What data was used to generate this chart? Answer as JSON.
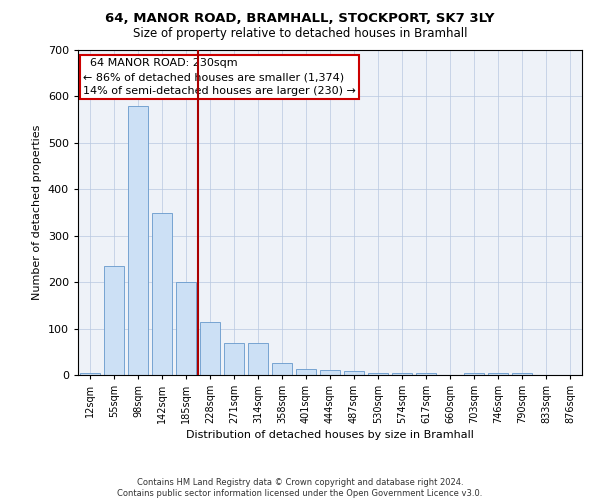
{
  "title_line1": "64, MANOR ROAD, BRAMHALL, STOCKPORT, SK7 3LY",
  "title_line2": "Size of property relative to detached houses in Bramhall",
  "xlabel": "Distribution of detached houses by size in Bramhall",
  "ylabel": "Number of detached properties",
  "annotation_line1": "  64 MANOR ROAD: 230sqm  ",
  "annotation_line2": "← 86% of detached houses are smaller (1,374)",
  "annotation_line3": "14% of semi-detached houses are larger (230) →",
  "bar_categories": [
    "12sqm",
    "55sqm",
    "98sqm",
    "142sqm",
    "185sqm",
    "228sqm",
    "271sqm",
    "314sqm",
    "358sqm",
    "401sqm",
    "444sqm",
    "487sqm",
    "530sqm",
    "574sqm",
    "617sqm",
    "660sqm",
    "703sqm",
    "746sqm",
    "790sqm",
    "833sqm",
    "876sqm"
  ],
  "bar_values": [
    5,
    235,
    580,
    350,
    200,
    115,
    70,
    70,
    25,
    13,
    10,
    8,
    5,
    5,
    5,
    0,
    5,
    5,
    5,
    0,
    0
  ],
  "bar_color": "#cce0f5",
  "bar_edge_color": "#6699cc",
  "vline_color": "#aa0000",
  "vline_x_index": 4.5,
  "background_color": "#eef2f8",
  "annotation_box_color": "#ffffff",
  "annotation_box_edge": "#cc0000",
  "ylim": [
    0,
    700
  ],
  "yticks": [
    0,
    100,
    200,
    300,
    400,
    500,
    600,
    700
  ],
  "footer_line1": "Contains HM Land Registry data © Crown copyright and database right 2024.",
  "footer_line2": "Contains public sector information licensed under the Open Government Licence v3.0."
}
